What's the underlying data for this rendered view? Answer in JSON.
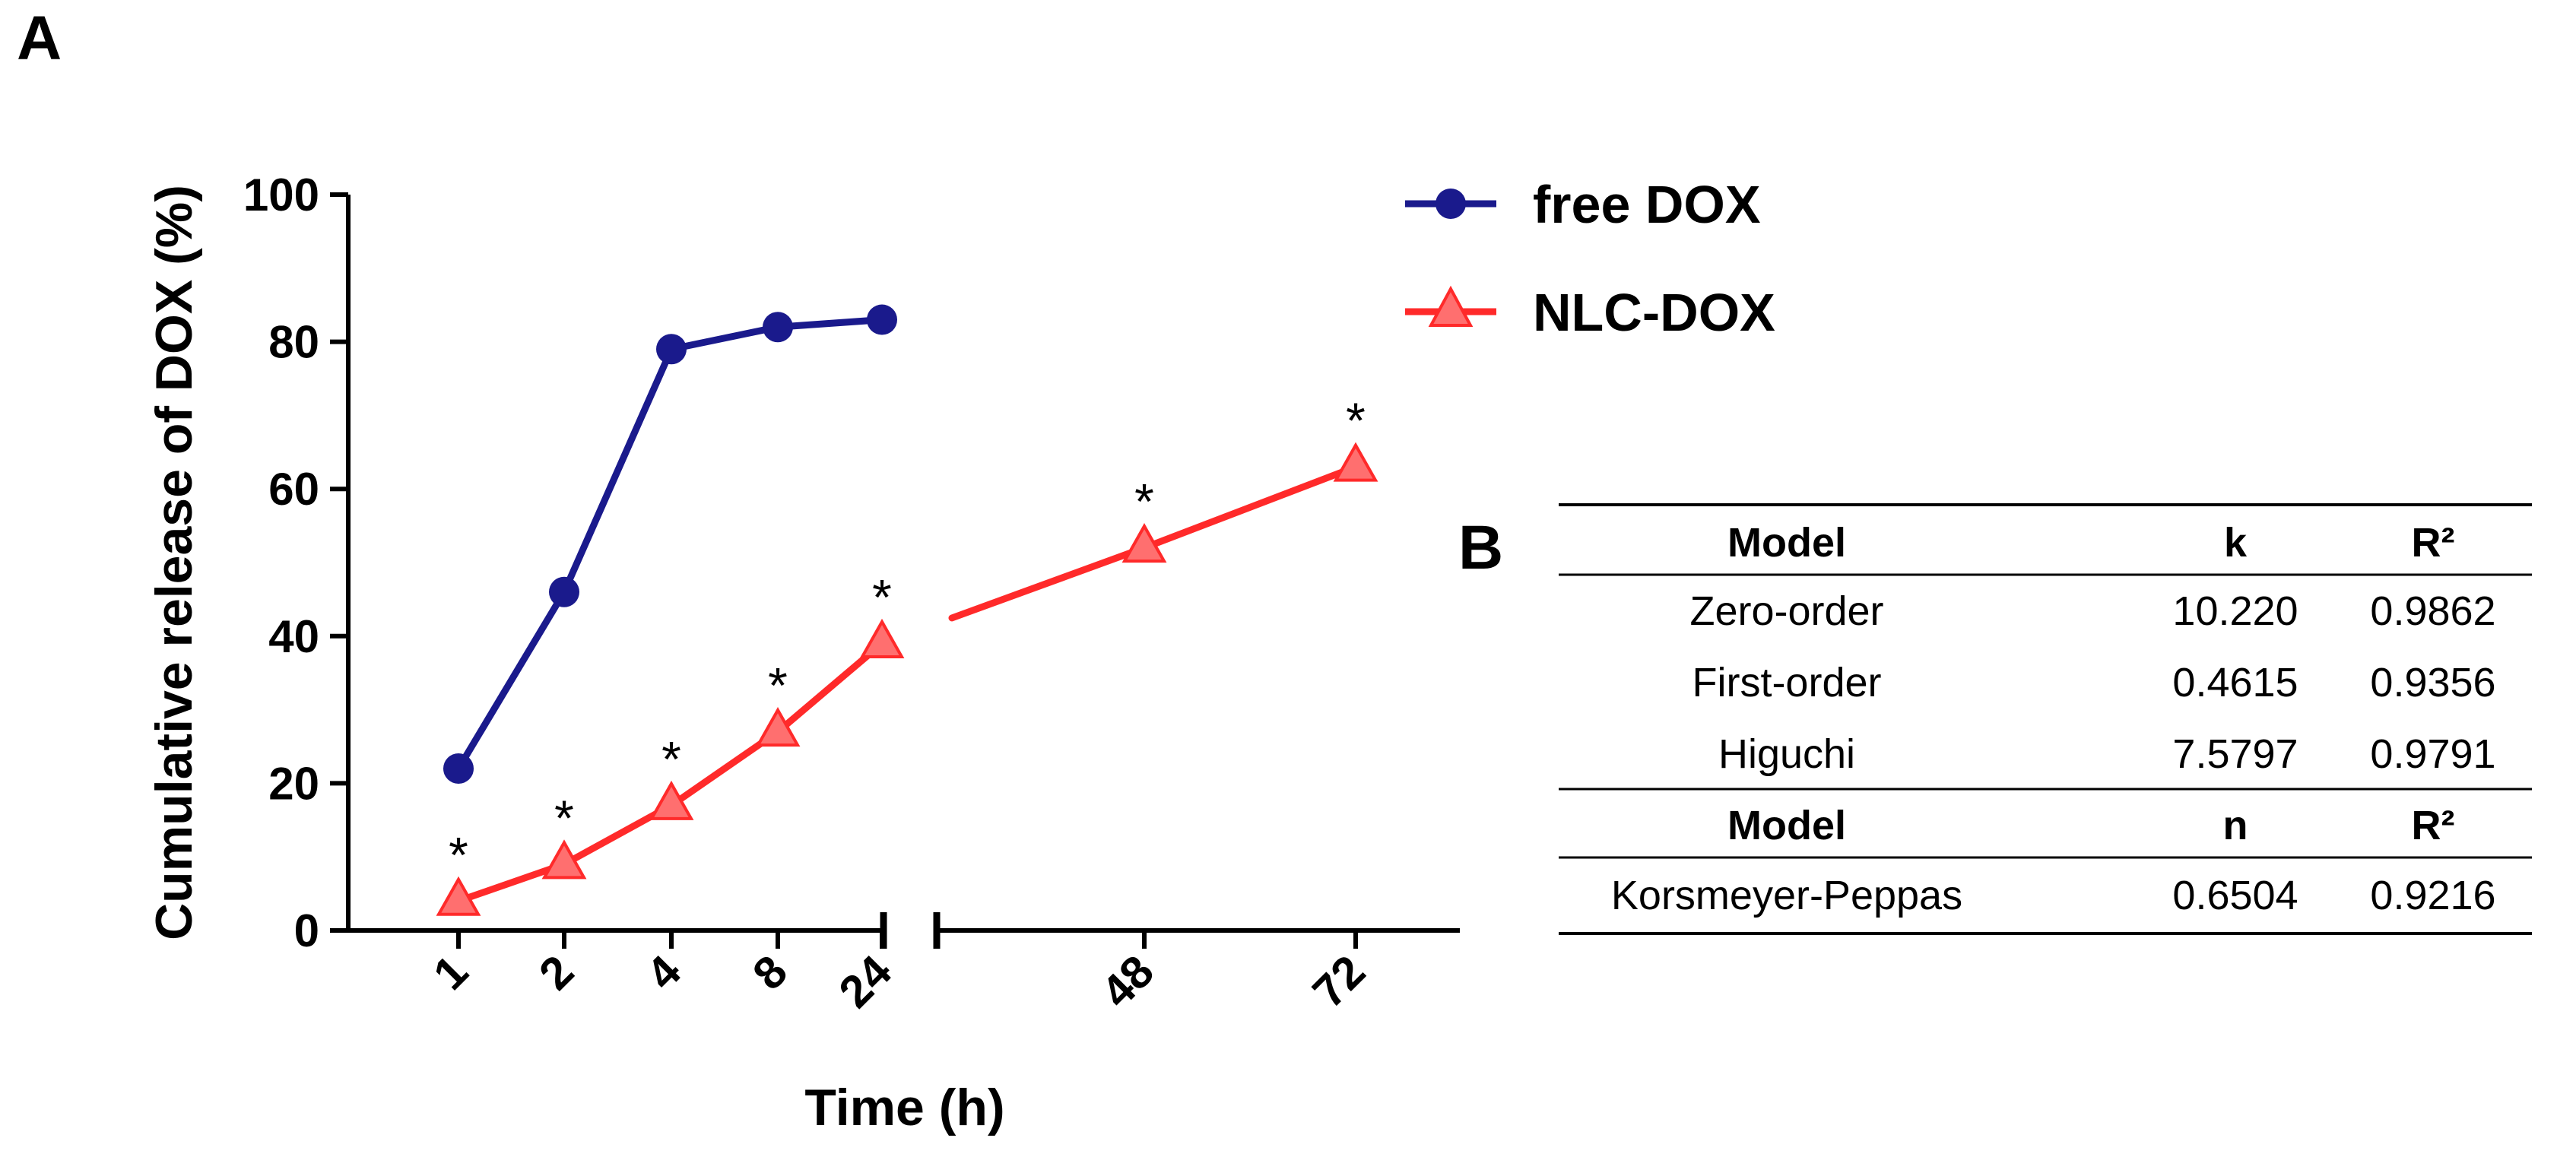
{
  "chart_data": {
    "type": "line",
    "panel_a_label": "A",
    "title": "",
    "xlabel": "Time (h)",
    "ylabel": "Cumulative release of DOX (%)",
    "ylim": [
      0,
      100
    ],
    "yticks": [
      0,
      20,
      40,
      60,
      80,
      100
    ],
    "x_axis_break": "between 24 and 48",
    "categories": [
      "1",
      "2",
      "4",
      "8",
      "24",
      "48",
      "72"
    ],
    "series": [
      {
        "name": "free DOX",
        "color": "#1a1a8c",
        "marker": "circle",
        "values": [
          22,
          46,
          79,
          82,
          83,
          null,
          null
        ],
        "labels": [
          "",
          "",
          "",
          "",
          "",
          "",
          ""
        ]
      },
      {
        "name": "NLC-DOX",
        "color": "#ff2a2a",
        "marker": "triangle",
        "values": [
          4,
          9,
          17,
          27,
          39,
          52,
          63
        ],
        "labels": [
          "*",
          "*",
          "*",
          "*",
          "*",
          "*",
          "*"
        ]
      }
    ],
    "legend": "top-right"
  },
  "table": {
    "panel_label": "B",
    "header1": [
      "Model",
      "k",
      "R²"
    ],
    "rows1": [
      [
        "Zero-order",
        "10.220",
        "0.9862"
      ],
      [
        "First-order",
        "0.4615",
        "0.9356"
      ],
      [
        "Higuchi",
        "7.5797",
        "0.9791"
      ]
    ],
    "header2": [
      "Model",
      "n",
      "R²"
    ],
    "rows2": [
      [
        "Korsmeyer-Peppas",
        "0.6504",
        "0.9216"
      ]
    ]
  }
}
